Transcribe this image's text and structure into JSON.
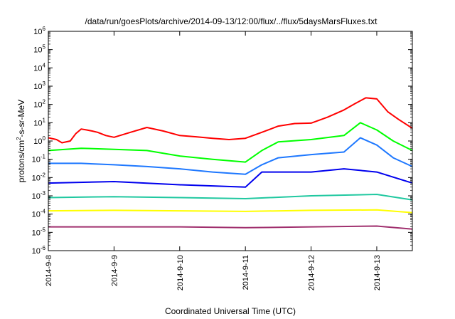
{
  "chart_data": {
    "type": "line",
    "title": "/data/run/goesPlots/archive/2014-09-13/12:00/flux/../flux/5daysMarsFluxes.txt",
    "xlabel": "Coordinated Universal Time (UTC)",
    "ylabel": "protons/cm2-s-sr-MeV",
    "ylabel_parts": {
      "base": "protons/cm",
      "sup": "2",
      "rest": "-s-sr-MeV"
    },
    "y_scale": "log",
    "ylim": [
      1e-06,
      1000000.0
    ],
    "xlim": [
      "2014-09-08T00:00",
      "2014-09-13T13:00"
    ],
    "x_ticks": [
      "2014-9-8",
      "2014-9-9",
      "2014-9-10",
      "2014-9-11",
      "2014-9-12",
      "2014-9-13"
    ],
    "y_ticks": [
      {
        "base": "10",
        "exp": "-6"
      },
      {
        "base": "10",
        "exp": "-5"
      },
      {
        "base": "10",
        "exp": "-4"
      },
      {
        "base": "10",
        "exp": "-3"
      },
      {
        "base": "10",
        "exp": "-2"
      },
      {
        "base": "10",
        "exp": "-1"
      },
      {
        "base": "10",
        "exp": "0"
      },
      {
        "base": "10",
        "exp": "1"
      },
      {
        "base": "10",
        "exp": "2"
      },
      {
        "base": "10",
        "exp": "3"
      },
      {
        "base": "10",
        "exp": "4"
      },
      {
        "base": "10",
        "exp": "5"
      },
      {
        "base": "10",
        "exp": "6"
      }
    ],
    "grid": false,
    "series": [
      {
        "color": "#ff0000",
        "x": [
          "2014-09-08T00:00",
          "2014-09-08T03:00",
          "2014-09-08T05:00",
          "2014-09-08T08:00",
          "2014-09-08T10:00",
          "2014-09-08T12:00",
          "2014-09-08T14:00",
          "2014-09-08T16:00",
          "2014-09-08T18:00",
          "2014-09-08T21:00",
          "2014-09-09T00:00",
          "2014-09-09T06:00",
          "2014-09-09T12:00",
          "2014-09-09T18:00",
          "2014-09-10T00:00",
          "2014-09-10T06:00",
          "2014-09-10T12:00",
          "2014-09-10T18:00",
          "2014-09-11T00:00",
          "2014-09-11T06:00",
          "2014-09-11T12:00",
          "2014-09-11T18:00",
          "2014-09-12T00:00",
          "2014-09-12T06:00",
          "2014-09-12T12:00",
          "2014-09-12T16:00",
          "2014-09-12T20:00",
          "2014-09-13T00:00",
          "2014-09-13T04:00",
          "2014-09-13T08:00",
          "2014-09-13T13:00"
        ],
        "values": [
          1.5,
          1.2,
          0.8,
          1.0,
          2.5,
          4.5,
          4.0,
          3.5,
          3.0,
          2.0,
          1.6,
          3.0,
          5.5,
          3.5,
          2.0,
          1.7,
          1.4,
          1.2,
          1.4,
          3.0,
          6.5,
          9.0,
          9.5,
          20,
          50,
          110,
          230,
          200,
          40,
          15,
          5
        ]
      },
      {
        "color": "#00ff00",
        "x": [
          "2014-09-08T00:00",
          "2014-09-08T12:00",
          "2014-09-09T00:00",
          "2014-09-09T12:00",
          "2014-09-10T00:00",
          "2014-09-10T12:00",
          "2014-09-11T00:00",
          "2014-09-11T06:00",
          "2014-09-11T12:00",
          "2014-09-12T00:00",
          "2014-09-12T12:00",
          "2014-09-12T18:00",
          "2014-09-13T00:00",
          "2014-09-13T06:00",
          "2014-09-13T13:00"
        ],
        "values": [
          0.3,
          0.4,
          0.35,
          0.3,
          0.15,
          0.1,
          0.07,
          0.3,
          0.9,
          1.2,
          2.0,
          10,
          4.0,
          1.0,
          0.3
        ]
      },
      {
        "color": "#1e78ff",
        "x": [
          "2014-09-08T00:00",
          "2014-09-08T12:00",
          "2014-09-09T00:00",
          "2014-09-09T12:00",
          "2014-09-10T00:00",
          "2014-09-10T12:00",
          "2014-09-11T00:00",
          "2014-09-11T06:00",
          "2014-09-11T12:00",
          "2014-09-12T00:00",
          "2014-09-12T12:00",
          "2014-09-12T18:00",
          "2014-09-13T00:00",
          "2014-09-13T06:00",
          "2014-09-13T13:00"
        ],
        "values": [
          0.06,
          0.06,
          0.05,
          0.04,
          0.03,
          0.02,
          0.015,
          0.05,
          0.12,
          0.18,
          0.25,
          1.5,
          0.6,
          0.12,
          0.04
        ]
      },
      {
        "color": "#0000ee",
        "x": [
          "2014-09-08T00:00",
          "2014-09-09T00:00",
          "2014-09-10T00:00",
          "2014-09-11T00:00",
          "2014-09-11T06:00",
          "2014-09-11T12:00",
          "2014-09-12T00:00",
          "2014-09-12T12:00",
          "2014-09-13T00:00",
          "2014-09-13T13:00"
        ],
        "values": [
          0.005,
          0.006,
          0.004,
          0.003,
          0.02,
          0.02,
          0.02,
          0.03,
          0.02,
          0.005
        ]
      },
      {
        "color": "#20c8a0",
        "x": [
          "2014-09-08T00:00",
          "2014-09-09T00:00",
          "2014-09-10T00:00",
          "2014-09-11T00:00",
          "2014-09-12T00:00",
          "2014-09-13T00:00",
          "2014-09-13T13:00"
        ],
        "values": [
          0.0008,
          0.0009,
          0.0008,
          0.0007,
          0.001,
          0.0012,
          0.0006
        ]
      },
      {
        "color": "#ffff00",
        "x": [
          "2014-09-08T00:00",
          "2014-09-09T00:00",
          "2014-09-10T00:00",
          "2014-09-11T00:00",
          "2014-09-12T00:00",
          "2014-09-13T00:00",
          "2014-09-13T13:00"
        ],
        "values": [
          0.00015,
          0.00016,
          0.00015,
          0.00014,
          0.00016,
          0.00017,
          0.00012
        ]
      },
      {
        "color": "#a0306e",
        "x": [
          "2014-09-08T00:00",
          "2014-09-09T00:00",
          "2014-09-10T00:00",
          "2014-09-11T00:00",
          "2014-09-12T00:00",
          "2014-09-13T00:00",
          "2014-09-13T13:00"
        ],
        "values": [
          2e-05,
          2e-05,
          2e-05,
          1.8e-05,
          2e-05,
          2.2e-05,
          1.5e-05
        ]
      }
    ]
  }
}
